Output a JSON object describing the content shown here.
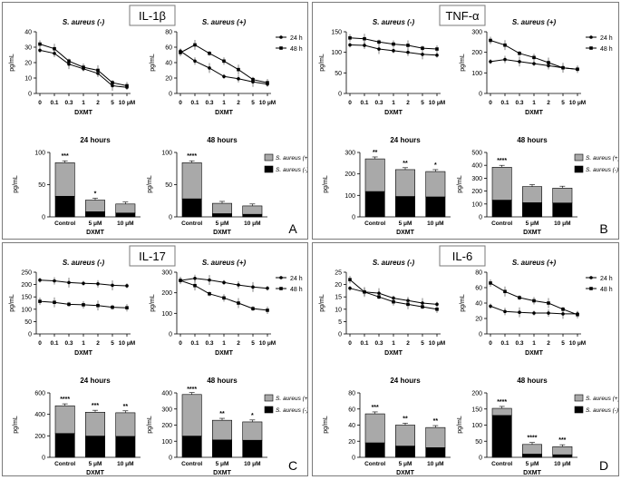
{
  "figure": {
    "xlabel": "DXMT",
    "bar_xlabel": "DXMT",
    "time_titles": [
      "24 hours",
      "48 hours"
    ]
  },
  "legend": {
    "line_24": "24 h",
    "line_48": "48 h",
    "bar_pos": "S. aureus (+)",
    "bar_neg": "S. aureus (-)"
  },
  "colors": {
    "bar_pos": "#a9a9a9",
    "bar_neg": "#000000",
    "line": "#000000",
    "border": "#7a7a7a"
  },
  "chart_data": [
    {
      "id": "A",
      "title": "IL-1β",
      "type": "line+stacked-bar",
      "line_ylabel": "pg/mL",
      "bar_ylabel": "pg/mL",
      "line_xticks": [
        "0",
        "0.1",
        "0.3",
        "1",
        "2",
        "5",
        "10 μM"
      ],
      "line_charts": [
        {
          "title": "S. aureus (-)",
          "ylim": [
            0,
            40
          ],
          "yticks": [
            0,
            10,
            20,
            30,
            40
          ],
          "series": [
            {
              "name": "24 h",
              "marker": "circle",
              "values": [
                28,
                26,
                19,
                16,
                13,
                5,
                4
              ]
            },
            {
              "name": "48 h",
              "marker": "square",
              "values": [
                32,
                29,
                21,
                17,
                15,
                7,
                5
              ]
            }
          ]
        },
        {
          "title": "S. aureus (+)",
          "ylim": [
            0,
            80
          ],
          "yticks": [
            0,
            20,
            40,
            60,
            80
          ],
          "series": [
            {
              "name": "24 h",
              "marker": "circle",
              "values": [
                55,
                42,
                33,
                22,
                19,
                15,
                12
              ]
            },
            {
              "name": "48 h",
              "marker": "square",
              "values": [
                53,
                63,
                52,
                42,
                31,
                18,
                14
              ]
            }
          ]
        }
      ],
      "bar_categories": [
        "Control",
        "5 μM",
        "10 μM"
      ],
      "bar_charts": [
        {
          "title": "24 hours",
          "ylim": [
            0,
            100
          ],
          "yticks": [
            0,
            50,
            100
          ],
          "neg": [
            32,
            8,
            6
          ],
          "pos": [
            52,
            18,
            14
          ],
          "sig": [
            "***",
            "*",
            ""
          ]
        },
        {
          "title": "48 hours",
          "ylim": [
            0,
            100
          ],
          "yticks": [
            0,
            50,
            100
          ],
          "neg": [
            28,
            5,
            4
          ],
          "pos": [
            56,
            16,
            13
          ],
          "sig": [
            "****",
            "",
            ""
          ]
        }
      ]
    },
    {
      "id": "B",
      "title": "TNF-α",
      "type": "line+stacked-bar",
      "line_ylabel": "pg/mL",
      "bar_ylabel": "pg/mL",
      "line_xticks": [
        "0",
        "0.1",
        "0.3",
        "1",
        "2",
        "5",
        "10 μM"
      ],
      "line_charts": [
        {
          "title": "S. aureus (-)",
          "ylim": [
            0,
            150
          ],
          "yticks": [
            0,
            50,
            100,
            150
          ],
          "series": [
            {
              "name": "24 h",
              "marker": "circle",
              "values": [
                118,
                117,
                108,
                104,
                100,
                95,
                93
              ]
            },
            {
              "name": "48 h",
              "marker": "square",
              "values": [
                135,
                133,
                125,
                120,
                117,
                110,
                108
              ]
            }
          ]
        },
        {
          "title": "S. aureus (+)",
          "ylim": [
            0,
            300
          ],
          "yticks": [
            0,
            100,
            200,
            300
          ],
          "series": [
            {
              "name": "24 h",
              "marker": "circle",
              "values": [
                155,
                165,
                155,
                145,
                135,
                125,
                118
              ]
            },
            {
              "name": "48 h",
              "marker": "square",
              "values": [
                258,
                235,
                195,
                175,
                150,
                125,
                118
              ]
            }
          ]
        }
      ],
      "bar_categories": [
        "Control",
        "5 μM",
        "10 μM"
      ],
      "bar_charts": [
        {
          "title": "24 hours",
          "ylim": [
            0,
            300
          ],
          "yticks": [
            0,
            100,
            200,
            300
          ],
          "neg": [
            118,
            95,
            93
          ],
          "pos": [
            152,
            125,
            118
          ],
          "sig": [
            "**",
            "**",
            "*"
          ]
        },
        {
          "title": "48 hours",
          "ylim": [
            0,
            500
          ],
          "yticks": [
            0,
            100,
            200,
            300,
            400,
            500
          ],
          "neg": [
            130,
            110,
            108
          ],
          "pos": [
            255,
            125,
            115
          ],
          "sig": [
            "****",
            "",
            ""
          ]
        }
      ]
    },
    {
      "id": "C",
      "title": "IL-17",
      "type": "line+stacked-bar",
      "line_ylabel": "pg/mL",
      "bar_ylabel": "pg/mL",
      "line_xticks": [
        "0",
        "0.1",
        "0.3",
        "1",
        "2",
        "5",
        "10 μM"
      ],
      "line_charts": [
        {
          "title": "S. aureus (-)",
          "ylim": [
            0,
            250
          ],
          "yticks": [
            0,
            50,
            100,
            150,
            200,
            250
          ],
          "series": [
            {
              "name": "24 h",
              "marker": "circle",
              "values": [
                218,
                215,
                208,
                205,
                203,
                197,
                195
              ]
            },
            {
              "name": "48 h",
              "marker": "square",
              "values": [
                132,
                128,
                120,
                118,
                115,
                108,
                106
              ]
            }
          ]
        },
        {
          "title": "S. aureus (+)",
          "ylim": [
            0,
            300
          ],
          "yticks": [
            0,
            100,
            200,
            300
          ],
          "series": [
            {
              "name": "24 h",
              "marker": "circle",
              "values": [
                260,
                270,
                262,
                250,
                238,
                228,
                222
              ]
            },
            {
              "name": "48 h",
              "marker": "square",
              "values": [
                260,
                235,
                195,
                175,
                150,
                123,
                115
              ]
            }
          ]
        }
      ],
      "bar_categories": [
        "Control",
        "5 μM",
        "10 μM"
      ],
      "bar_charts": [
        {
          "title": "24 hours",
          "ylim": [
            0,
            600
          ],
          "yticks": [
            0,
            200,
            400,
            600
          ],
          "neg": [
            222,
            198,
            195
          ],
          "pos": [
            258,
            222,
            220
          ],
          "sig": [
            "****",
            "***",
            "**"
          ]
        },
        {
          "title": "48 hours",
          "ylim": [
            0,
            400
          ],
          "yticks": [
            0,
            100,
            200,
            300,
            400
          ],
          "neg": [
            132,
            108,
            106
          ],
          "pos": [
            258,
            122,
            114
          ],
          "sig": [
            "****",
            "**",
            "*"
          ]
        }
      ]
    },
    {
      "id": "D",
      "title": "IL-6",
      "type": "line+stacked-bar",
      "line_ylabel": "pg/mL",
      "bar_ylabel": "pg/mL",
      "line_xticks": [
        "0",
        "0.1",
        "0.3",
        "1",
        "2",
        "5",
        "10 μM"
      ],
      "line_charts": [
        {
          "title": "S. aureus (-)",
          "ylim": [
            0,
            25
          ],
          "yticks": [
            0,
            5,
            10,
            15,
            20,
            25
          ],
          "series": [
            {
              "name": "24 h",
              "marker": "circle",
              "values": [
                18.5,
                17,
                16.5,
                14.5,
                13.5,
                12.5,
                12
              ]
            },
            {
              "name": "48 h",
              "marker": "square",
              "values": [
                22,
                17,
                15,
                13,
                12,
                11,
                10
              ]
            }
          ]
        },
        {
          "title": "S. aureus (+)",
          "ylim": [
            0,
            80
          ],
          "yticks": [
            0,
            20,
            40,
            60,
            80
          ],
          "series": [
            {
              "name": "24 h",
              "marker": "circle",
              "values": [
                36,
                29,
                28,
                27,
                27,
                26,
                26
              ]
            },
            {
              "name": "48 h",
              "marker": "square",
              "values": [
                66,
                55,
                47,
                43,
                40,
                32,
                25
              ]
            }
          ]
        }
      ],
      "bar_categories": [
        "Control",
        "5 μM",
        "10 μM"
      ],
      "bar_charts": [
        {
          "title": "24 hours",
          "ylim": [
            0,
            80
          ],
          "yticks": [
            0,
            20,
            40,
            60,
            80
          ],
          "neg": [
            18,
            14,
            12
          ],
          "pos": [
            36,
            26,
            25
          ],
          "sig": [
            "***",
            "**",
            "**"
          ]
        },
        {
          "title": "48 hours",
          "ylim": [
            0,
            200
          ],
          "yticks": [
            0,
            50,
            100,
            150,
            200
          ],
          "neg": [
            130,
            10,
            8
          ],
          "pos": [
            22,
            30,
            25
          ],
          "sig": [
            "****",
            "****",
            "***"
          ]
        }
      ]
    }
  ]
}
